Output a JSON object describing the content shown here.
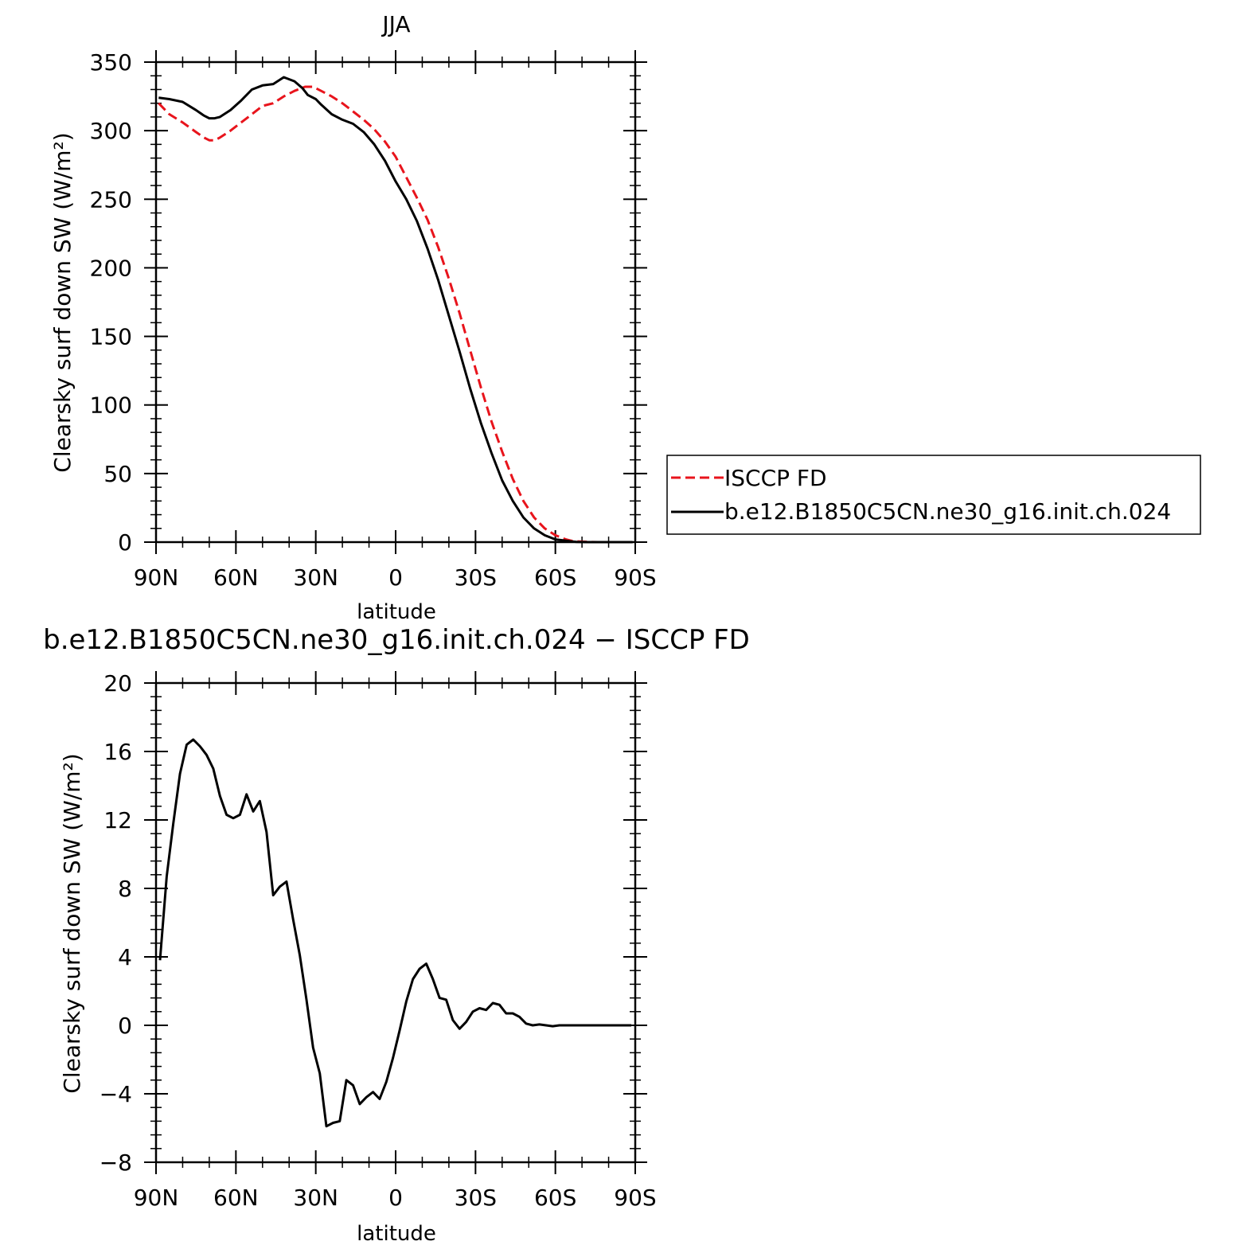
{
  "chart_data": [
    {
      "type": "line",
      "title": "JJA",
      "xlabel": "latitude",
      "ylabel": "Clearsky surf down SW (W/m²)",
      "xlim": [
        90,
        -90
      ],
      "ylim": [
        0,
        350
      ],
      "xticks": [
        {
          "value": 90,
          "label": "90N"
        },
        {
          "value": 60,
          "label": "60N"
        },
        {
          "value": 30,
          "label": "30N"
        },
        {
          "value": 0,
          "label": "0"
        },
        {
          "value": -30,
          "label": "30S"
        },
        {
          "value": -60,
          "label": "60S"
        },
        {
          "value": -90,
          "label": "90S"
        }
      ],
      "yticks": [
        0,
        50,
        100,
        150,
        200,
        250,
        300,
        350
      ],
      "legend_position": "right",
      "series": [
        {
          "name": "ISCCP FD",
          "color": "#e8141c",
          "dash": "dashed",
          "x": [
            89,
            85,
            80,
            75,
            72,
            70,
            68,
            66,
            62,
            58,
            54,
            50,
            46,
            42,
            38,
            34,
            31,
            28,
            24,
            20,
            16,
            12,
            8,
            4,
            0,
            -4,
            -8,
            -12,
            -16,
            -20,
            -24,
            -28,
            -32,
            -36,
            -40,
            -44,
            -48,
            -52,
            -56,
            -60,
            -64,
            -66,
            -68,
            -72,
            -76,
            -80,
            -84,
            -89
          ],
          "y": [
            320,
            312,
            306,
            299,
            295,
            293,
            293,
            295,
            300,
            306,
            312,
            318,
            320,
            325,
            329,
            332,
            332,
            329,
            325,
            320,
            314,
            308,
            301,
            292,
            281,
            266,
            251,
            235,
            215,
            192,
            167,
            140,
            113,
            88,
            66,
            46,
            30,
            18,
            10,
            5,
            2,
            1,
            0.5,
            0.2,
            0,
            0,
            0,
            0
          ]
        },
        {
          "name": "b.e12.B1850C5CN.ne30_g16.init.ch.024",
          "color": "#000000",
          "dash": "solid",
          "x": [
            89,
            85,
            80,
            75,
            72,
            70,
            68,
            66,
            62,
            58,
            54,
            50,
            46,
            42,
            38,
            35,
            33,
            30,
            28,
            24,
            20,
            16,
            12,
            8,
            4,
            0,
            -4,
            -8,
            -12,
            -16,
            -20,
            -24,
            -28,
            -32,
            -36,
            -40,
            -44,
            -48,
            -52,
            -56,
            -60,
            -64,
            -66,
            -68,
            -72,
            -76,
            -80,
            -84,
            -89
          ],
          "y": [
            324,
            323,
            321,
            315,
            311,
            309,
            309,
            310,
            315,
            322,
            330,
            333,
            334,
            339,
            336,
            331,
            326,
            323,
            319,
            312,
            308,
            305,
            299,
            290,
            278,
            263,
            250,
            234,
            214,
            191,
            165,
            139,
            112,
            87,
            65,
            45,
            30,
            18,
            10,
            5,
            2,
            1,
            0.5,
            0.2,
            0,
            0,
            0,
            0,
            0
          ]
        }
      ]
    },
    {
      "type": "line",
      "title": "b.e12.B1850C5CN.ne30_g16.init.ch.024 − ISCCP FD",
      "xlabel": "latitude",
      "ylabel": "Clearsky surf down SW (W/m²)",
      "xlim": [
        90,
        -90
      ],
      "ylim": [
        -8,
        20
      ],
      "xticks": [
        {
          "value": 90,
          "label": "90N"
        },
        {
          "value": 60,
          "label": "60N"
        },
        {
          "value": 30,
          "label": "30N"
        },
        {
          "value": 0,
          "label": "0"
        },
        {
          "value": -30,
          "label": "30S"
        },
        {
          "value": -60,
          "label": "60S"
        },
        {
          "value": -90,
          "label": "90S"
        }
      ],
      "yticks": [
        -8,
        -4,
        0,
        4,
        8,
        12,
        16,
        20
      ],
      "series": [
        {
          "color": "#000000",
          "dash": "solid",
          "x": [
            88.5,
            86,
            83.5,
            81,
            78.5,
            76,
            73.5,
            71,
            68.5,
            66,
            63.5,
            61,
            58.5,
            56,
            53.5,
            51,
            48.5,
            46,
            43.5,
            41,
            38.5,
            36,
            33.5,
            31,
            28.5,
            26,
            23.5,
            21,
            18.5,
            16,
            13.5,
            11,
            8.5,
            6,
            3.5,
            1,
            -1.5,
            -4,
            -6.5,
            -9,
            -11.5,
            -14,
            -16.5,
            -19,
            -21.5,
            -24,
            -26.5,
            -29,
            -31.5,
            -34,
            -36.5,
            -39,
            -41.5,
            -44,
            -46.5,
            -49,
            -51.5,
            -54,
            -56.5,
            -59,
            -61.5,
            -64,
            -66.5,
            -69,
            -71.5,
            -74,
            -76.5,
            -79,
            -81.5,
            -84,
            -86.5,
            -88.5
          ],
          "y": [
            3.8,
            8.7,
            11.8,
            14.7,
            16.4,
            16.7,
            16.3,
            15.8,
            15.0,
            13.4,
            12.3,
            12.1,
            12.3,
            13.5,
            12.5,
            13.1,
            11.3,
            7.6,
            8.1,
            8.4,
            6.2,
            4.1,
            1.5,
            -1.3,
            -2.8,
            -5.9,
            -5.7,
            -5.6,
            -3.2,
            -3.5,
            -4.6,
            -4.2,
            -3.9,
            -4.3,
            -3.3,
            -1.9,
            -0.3,
            1.4,
            2.7,
            3.3,
            3.6,
            2.7,
            1.6,
            1.5,
            0.3,
            -0.2,
            0.2,
            0.8,
            1.0,
            0.9,
            1.3,
            1.2,
            0.7,
            0.7,
            0.5,
            0.1,
            0.0,
            0.05,
            0.0,
            -0.05,
            0.0,
            0.0,
            0.0,
            0.0,
            0.0,
            0.0,
            0.0,
            0.0,
            0.0,
            0.0,
            0.0,
            0.0
          ]
        }
      ]
    }
  ]
}
